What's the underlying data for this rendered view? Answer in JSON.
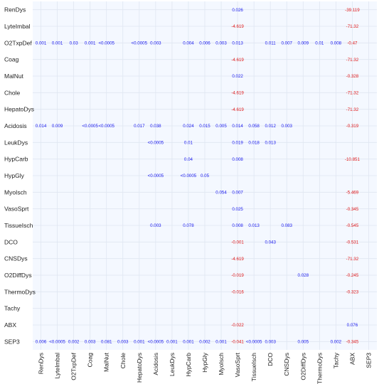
{
  "colors": {
    "positive": "#1a1aee",
    "negative": "#e01818",
    "background": "#f4f8ff",
    "grid": "#dfe6f1"
  },
  "chart_data": {
    "type": "table",
    "grid": true,
    "rows": [
      "RenDys",
      "LyteImbal",
      "O2TxpDef",
      "Coag",
      "MalNut",
      "Chole",
      "HepatoDys",
      "Acidosis",
      "LeukDys",
      "HypCarb",
      "HypGly",
      "MyoIsch",
      "VasoSprt",
      "TissueIsch",
      "DCO",
      "CNSDys",
      "O2DiffDys",
      "ThermoDys",
      "Tachy",
      "ABX",
      "SEP3"
    ],
    "columns": [
      "RenDys",
      "LyteImbal",
      "O2TxpDef",
      "Coag",
      "MalNut",
      "Chole",
      "HepatoDys",
      "Acidosis",
      "LeukDys",
      "HypCarb",
      "HypGly",
      "MyoIsch",
      "VasoSprt",
      "TissueIsch",
      "DCO",
      "CNSDys",
      "O2DiffDys",
      "ThermoDys",
      "Tachy",
      "ABX",
      "SEP3"
    ],
    "cells": [
      {
        "row": 0,
        "col": 12,
        "text": "0.026",
        "sign": "positive"
      },
      {
        "row": 0,
        "col": 19,
        "text": "-39.119",
        "sign": "negative"
      },
      {
        "row": 1,
        "col": 12,
        "text": "-4.619",
        "sign": "negative"
      },
      {
        "row": 1,
        "col": 19,
        "text": "-71.32",
        "sign": "negative"
      },
      {
        "row": 2,
        "col": 0,
        "text": "0.001",
        "sign": "positive"
      },
      {
        "row": 2,
        "col": 1,
        "text": "0.001",
        "sign": "positive"
      },
      {
        "row": 2,
        "col": 2,
        "text": "0.03",
        "sign": "positive"
      },
      {
        "row": 2,
        "col": 3,
        "text": "0.001",
        "sign": "positive"
      },
      {
        "row": 2,
        "col": 4,
        "text": "<0.0005",
        "sign": "positive"
      },
      {
        "row": 2,
        "col": 6,
        "text": "<0.0005",
        "sign": "positive"
      },
      {
        "row": 2,
        "col": 7,
        "text": "0.003",
        "sign": "positive"
      },
      {
        "row": 2,
        "col": 9,
        "text": "0.004",
        "sign": "positive"
      },
      {
        "row": 2,
        "col": 10,
        "text": "0.006",
        "sign": "positive"
      },
      {
        "row": 2,
        "col": 11,
        "text": "0.003",
        "sign": "positive"
      },
      {
        "row": 2,
        "col": 12,
        "text": "0.013",
        "sign": "positive"
      },
      {
        "row": 2,
        "col": 14,
        "text": "0.011",
        "sign": "positive"
      },
      {
        "row": 2,
        "col": 15,
        "text": "0.007",
        "sign": "positive"
      },
      {
        "row": 2,
        "col": 16,
        "text": "0.009",
        "sign": "positive"
      },
      {
        "row": 2,
        "col": 17,
        "text": "0.01",
        "sign": "positive"
      },
      {
        "row": 2,
        "col": 18,
        "text": "0.008",
        "sign": "positive"
      },
      {
        "row": 2,
        "col": 19,
        "text": "-0.47",
        "sign": "negative"
      },
      {
        "row": 3,
        "col": 12,
        "text": "-4.619",
        "sign": "negative"
      },
      {
        "row": 3,
        "col": 19,
        "text": "-71.32",
        "sign": "negative"
      },
      {
        "row": 4,
        "col": 12,
        "text": "0.022",
        "sign": "positive"
      },
      {
        "row": 4,
        "col": 19,
        "text": "-0.328",
        "sign": "negative"
      },
      {
        "row": 5,
        "col": 12,
        "text": "-4.619",
        "sign": "negative"
      },
      {
        "row": 5,
        "col": 19,
        "text": "-71.32",
        "sign": "negative"
      },
      {
        "row": 6,
        "col": 12,
        "text": "-4.619",
        "sign": "negative"
      },
      {
        "row": 6,
        "col": 19,
        "text": "-71.32",
        "sign": "negative"
      },
      {
        "row": 7,
        "col": 0,
        "text": "0.014",
        "sign": "positive"
      },
      {
        "row": 7,
        "col": 1,
        "text": "0.009",
        "sign": "positive"
      },
      {
        "row": 7,
        "col": 3,
        "text": "<0.0005",
        "sign": "positive"
      },
      {
        "row": 7,
        "col": 4,
        "text": "<0.0005",
        "sign": "positive"
      },
      {
        "row": 7,
        "col": 6,
        "text": "0.017",
        "sign": "positive"
      },
      {
        "row": 7,
        "col": 7,
        "text": "0.038",
        "sign": "positive"
      },
      {
        "row": 7,
        "col": 9,
        "text": "0.024",
        "sign": "positive"
      },
      {
        "row": 7,
        "col": 10,
        "text": "0.015",
        "sign": "positive"
      },
      {
        "row": 7,
        "col": 11,
        "text": "0.005",
        "sign": "positive"
      },
      {
        "row": 7,
        "col": 12,
        "text": "0.014",
        "sign": "positive"
      },
      {
        "row": 7,
        "col": 13,
        "text": "0.058",
        "sign": "positive"
      },
      {
        "row": 7,
        "col": 14,
        "text": "0.012",
        "sign": "positive"
      },
      {
        "row": 7,
        "col": 15,
        "text": "0.003",
        "sign": "positive"
      },
      {
        "row": 7,
        "col": 19,
        "text": "-0.319",
        "sign": "negative"
      },
      {
        "row": 8,
        "col": 7,
        "text": "<0.0005",
        "sign": "positive"
      },
      {
        "row": 8,
        "col": 9,
        "text": "0.01",
        "sign": "positive"
      },
      {
        "row": 8,
        "col": 12,
        "text": "0.019",
        "sign": "positive"
      },
      {
        "row": 8,
        "col": 13,
        "text": "0.018",
        "sign": "positive"
      },
      {
        "row": 8,
        "col": 14,
        "text": "0.013",
        "sign": "positive"
      },
      {
        "row": 9,
        "col": 9,
        "text": "0.04",
        "sign": "positive"
      },
      {
        "row": 9,
        "col": 12,
        "text": "0.008",
        "sign": "positive"
      },
      {
        "row": 9,
        "col": 19,
        "text": "-10.851",
        "sign": "negative"
      },
      {
        "row": 10,
        "col": 7,
        "text": "<0.0005",
        "sign": "positive"
      },
      {
        "row": 10,
        "col": 9,
        "text": "<0.0005",
        "sign": "positive"
      },
      {
        "row": 10,
        "col": 10,
        "text": "0.05",
        "sign": "positive"
      },
      {
        "row": 11,
        "col": 11,
        "text": "0.054",
        "sign": "positive"
      },
      {
        "row": 11,
        "col": 12,
        "text": "0.007",
        "sign": "positive"
      },
      {
        "row": 11,
        "col": 19,
        "text": "-5.469",
        "sign": "negative"
      },
      {
        "row": 12,
        "col": 12,
        "text": "0.025",
        "sign": "positive"
      },
      {
        "row": 12,
        "col": 19,
        "text": "-0.345",
        "sign": "negative"
      },
      {
        "row": 13,
        "col": 7,
        "text": "0.003",
        "sign": "positive"
      },
      {
        "row": 13,
        "col": 9,
        "text": "0.078",
        "sign": "positive"
      },
      {
        "row": 13,
        "col": 12,
        "text": "0.008",
        "sign": "positive"
      },
      {
        "row": 13,
        "col": 13,
        "text": "0.013",
        "sign": "positive"
      },
      {
        "row": 13,
        "col": 15,
        "text": "0.083",
        "sign": "positive"
      },
      {
        "row": 13,
        "col": 19,
        "text": "-0.545",
        "sign": "negative"
      },
      {
        "row": 14,
        "col": 12,
        "text": "-0.001",
        "sign": "negative"
      },
      {
        "row": 14,
        "col": 14,
        "text": "0.043",
        "sign": "positive"
      },
      {
        "row": 14,
        "col": 19,
        "text": "-0.531",
        "sign": "negative"
      },
      {
        "row": 15,
        "col": 12,
        "text": "-4.619",
        "sign": "negative"
      },
      {
        "row": 15,
        "col": 19,
        "text": "-71.32",
        "sign": "negative"
      },
      {
        "row": 16,
        "col": 12,
        "text": "-0.019",
        "sign": "negative"
      },
      {
        "row": 16,
        "col": 16,
        "text": "0.028",
        "sign": "positive"
      },
      {
        "row": 16,
        "col": 19,
        "text": "-0.245",
        "sign": "negative"
      },
      {
        "row": 17,
        "col": 12,
        "text": "-0.016",
        "sign": "negative"
      },
      {
        "row": 17,
        "col": 19,
        "text": "-0.323",
        "sign": "negative"
      },
      {
        "row": 19,
        "col": 12,
        "text": "-0.022",
        "sign": "negative"
      },
      {
        "row": 19,
        "col": 19,
        "text": "0.076",
        "sign": "positive"
      },
      {
        "row": 20,
        "col": 0,
        "text": "0.006",
        "sign": "positive"
      },
      {
        "row": 20,
        "col": 1,
        "text": "<0.0005",
        "sign": "positive"
      },
      {
        "row": 20,
        "col": 2,
        "text": "0.002",
        "sign": "positive"
      },
      {
        "row": 20,
        "col": 3,
        "text": "0.003",
        "sign": "positive"
      },
      {
        "row": 20,
        "col": 4,
        "text": "0.081",
        "sign": "positive"
      },
      {
        "row": 20,
        "col": 5,
        "text": "0.003",
        "sign": "positive"
      },
      {
        "row": 20,
        "col": 6,
        "text": "0.001",
        "sign": "positive"
      },
      {
        "row": 20,
        "col": 7,
        "text": "<0.0005",
        "sign": "positive"
      },
      {
        "row": 20,
        "col": 8,
        "text": "0.001",
        "sign": "positive"
      },
      {
        "row": 20,
        "col": 9,
        "text": "0.001",
        "sign": "positive"
      },
      {
        "row": 20,
        "col": 10,
        "text": "0.002",
        "sign": "positive"
      },
      {
        "row": 20,
        "col": 11,
        "text": "0.001",
        "sign": "positive"
      },
      {
        "row": 20,
        "col": 12,
        "text": "-0.041",
        "sign": "negative"
      },
      {
        "row": 20,
        "col": 13,
        "text": "<0.0005",
        "sign": "positive"
      },
      {
        "row": 20,
        "col": 14,
        "text": "0.003",
        "sign": "positive"
      },
      {
        "row": 20,
        "col": 16,
        "text": "0.005",
        "sign": "positive"
      },
      {
        "row": 20,
        "col": 18,
        "text": "0.002",
        "sign": "positive"
      },
      {
        "row": 20,
        "col": 19,
        "text": "-0.345",
        "sign": "negative"
      }
    ]
  }
}
